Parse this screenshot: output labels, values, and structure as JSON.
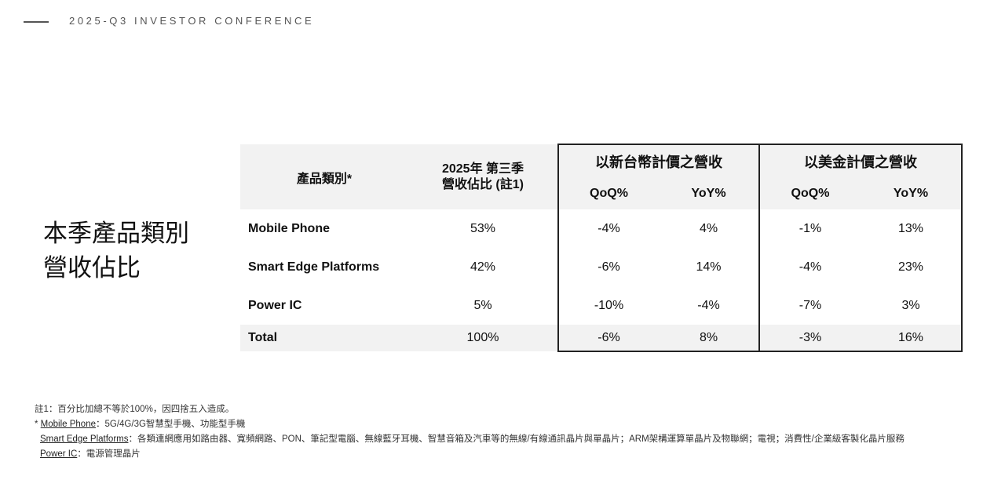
{
  "header": {
    "conference": "2025-Q3 INVESTOR CONFERENCE"
  },
  "title": {
    "line1": "本季產品類別",
    "line2": "營收佔比"
  },
  "table": {
    "col_category": "產品類別*",
    "col_share_line1": "2025年 第三季",
    "col_share_line2": "營收佔比 (註1)",
    "group_ntd": "以新台幣計價之營收",
    "group_usd": "以美金計價之營收",
    "sub": {
      "qoq": "QoQ%",
      "yoy": "YoY%"
    },
    "rows": [
      {
        "category": "Mobile Phone",
        "share": "53%",
        "ntd_qoq": "-4%",
        "ntd_yoy": "4%",
        "usd_qoq": "-1%",
        "usd_yoy": "13%"
      },
      {
        "category": "Smart Edge Platforms",
        "share": "42%",
        "ntd_qoq": "-6%",
        "ntd_yoy": "14%",
        "usd_qoq": "-4%",
        "usd_yoy": "23%"
      },
      {
        "category": "Power IC",
        "share": "5%",
        "ntd_qoq": "-10%",
        "ntd_yoy": "-4%",
        "usd_qoq": "-7%",
        "usd_yoy": "3%"
      },
      {
        "category": "Total",
        "share": "100%",
        "ntd_qoq": "-6%",
        "ntd_yoy": "8%",
        "usd_qoq": "-3%",
        "usd_yoy": "16%"
      }
    ]
  },
  "notes": {
    "note1": "註1：百分比加總不等於100%，因四捨五入造成。",
    "star": "* ",
    "mobile_label": "Mobile Phone",
    "mobile_text": "：5G/4G/3G智慧型手機、功能型手機",
    "smart_label": "Smart Edge Platforms",
    "smart_text": "：各類連網應用如路由器、寬頻網路、PON、筆記型電腦、無線藍牙耳機、智慧音箱及汽車等的無線/有線通訊晶片與單晶片；ARM架構運算單晶片及物聯網；電視；消費性/企業級客製化晶片服務",
    "power_label": "Power IC",
    "power_text": "：電源管理晶片"
  }
}
